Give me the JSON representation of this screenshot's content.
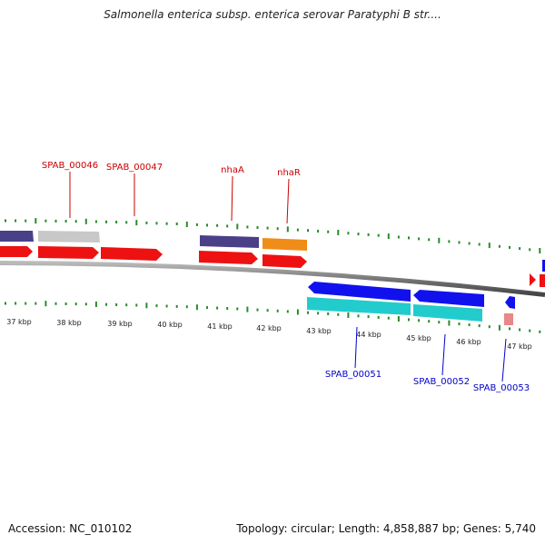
{
  "title": "Salmonella enterica subsp. enterica serovar Paratyphi B str....",
  "accession_label": "Accession: NC_010102",
  "topology_label": "Topology: circular; Length: 4,858,887 bp; Genes: 5,740",
  "scale_labels": [
    "37 kbp",
    "38 kbp",
    "39 kbp",
    "40 kbp",
    "41 kbp",
    "42 kbp",
    "43 kbp",
    "44 kbp",
    "45 kbp",
    "46 kbp",
    "47 kbp"
  ],
  "forward_gene_labels": [
    "SPAB_00046",
    "SPAB_00047",
    "nhaA",
    "nhaR"
  ],
  "reverse_gene_labels": [
    "SPAB_00051",
    "SPAB_00052",
    "SPAB_00053"
  ],
  "colors": {
    "forward_label": "#cc0000",
    "reverse_label": "#0000cc",
    "cds_forward": "#ee1111",
    "cds_reverse": "#1111ee",
    "purple_feature": "#4a4088",
    "grey_feature": "#c8c8c8",
    "orange_feature": "#f08c18",
    "cyan_feature": "#22cccc",
    "pink_feature": "#e88888",
    "tick_green": "#2a8a2a",
    "backbone": "#666666"
  }
}
